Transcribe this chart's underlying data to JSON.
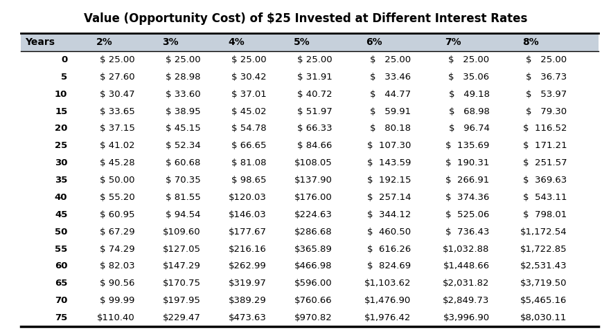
{
  "title": "Value (Opportunity Cost) of $25 Invested at Different Interest Rates",
  "columns": [
    "Years",
    "2%",
    "3%",
    "4%",
    "5%",
    "6%",
    "7%",
    "8%"
  ],
  "rows": [
    [
      "0",
      "$ 25.00",
      "$ 25.00",
      "$ 25.00",
      "$ 25.00",
      "$   25.00",
      "$   25.00",
      "$   25.00"
    ],
    [
      "5",
      "$ 27.60",
      "$ 28.98",
      "$ 30.42",
      "$ 31.91",
      "$   33.46",
      "$   35.06",
      "$   36.73"
    ],
    [
      "10",
      "$ 30.47",
      "$ 33.60",
      "$ 37.01",
      "$ 40.72",
      "$   44.77",
      "$   49.18",
      "$   53.97"
    ],
    [
      "15",
      "$ 33.65",
      "$ 38.95",
      "$ 45.02",
      "$ 51.97",
      "$   59.91",
      "$   68.98",
      "$   79.30"
    ],
    [
      "20",
      "$ 37.15",
      "$ 45.15",
      "$ 54.78",
      "$ 66.33",
      "$   80.18",
      "$   96.74",
      "$  116.52"
    ],
    [
      "25",
      "$ 41.02",
      "$ 52.34",
      "$ 66.65",
      "$ 84.66",
      "$  107.30",
      "$  135.69",
      "$  171.21"
    ],
    [
      "30",
      "$ 45.28",
      "$ 60.68",
      "$ 81.08",
      "$108.05",
      "$  143.59",
      "$  190.31",
      "$  251.57"
    ],
    [
      "35",
      "$ 50.00",
      "$ 70.35",
      "$ 98.65",
      "$137.90",
      "$  192.15",
      "$  266.91",
      "$  369.63"
    ],
    [
      "40",
      "$ 55.20",
      "$ 81.55",
      "$120.03",
      "$176.00",
      "$  257.14",
      "$  374.36",
      "$  543.11"
    ],
    [
      "45",
      "$ 60.95",
      "$ 94.54",
      "$146.03",
      "$224.63",
      "$  344.12",
      "$  525.06",
      "$  798.01"
    ],
    [
      "50",
      "$ 67.29",
      "$109.60",
      "$177.67",
      "$286.68",
      "$  460.50",
      "$  736.43",
      "$1,172.54"
    ],
    [
      "55",
      "$ 74.29",
      "$127.05",
      "$216.16",
      "$365.89",
      "$  616.26",
      "$1,032.88",
      "$1,722.85"
    ],
    [
      "60",
      "$ 82.03",
      "$147.29",
      "$262.99",
      "$466.98",
      "$  824.69",
      "$1,448.66",
      "$2,531.43"
    ],
    [
      "65",
      "$ 90.56",
      "$170.75",
      "$319.97",
      "$596.00",
      "$1,103.62",
      "$2,031.82",
      "$3,719.50"
    ],
    [
      "70",
      "$ 99.99",
      "$197.95",
      "$389.29",
      "$760.66",
      "$1,476.90",
      "$2,849.73",
      "$5,465.16"
    ],
    [
      "75",
      "$110.40",
      "$229.47",
      "$473.63",
      "$970.82",
      "$1,976.42",
      "$3,996.90",
      "$8,030.11"
    ]
  ],
  "header_bg": "#c6d0db",
  "title_fontsize": 12,
  "header_fontsize": 10,
  "cell_fontsize": 9.5,
  "background_color": "#ffffff",
  "border_color": "#000000",
  "fig_width": 8.82,
  "fig_height": 4.8,
  "dpi": 100
}
